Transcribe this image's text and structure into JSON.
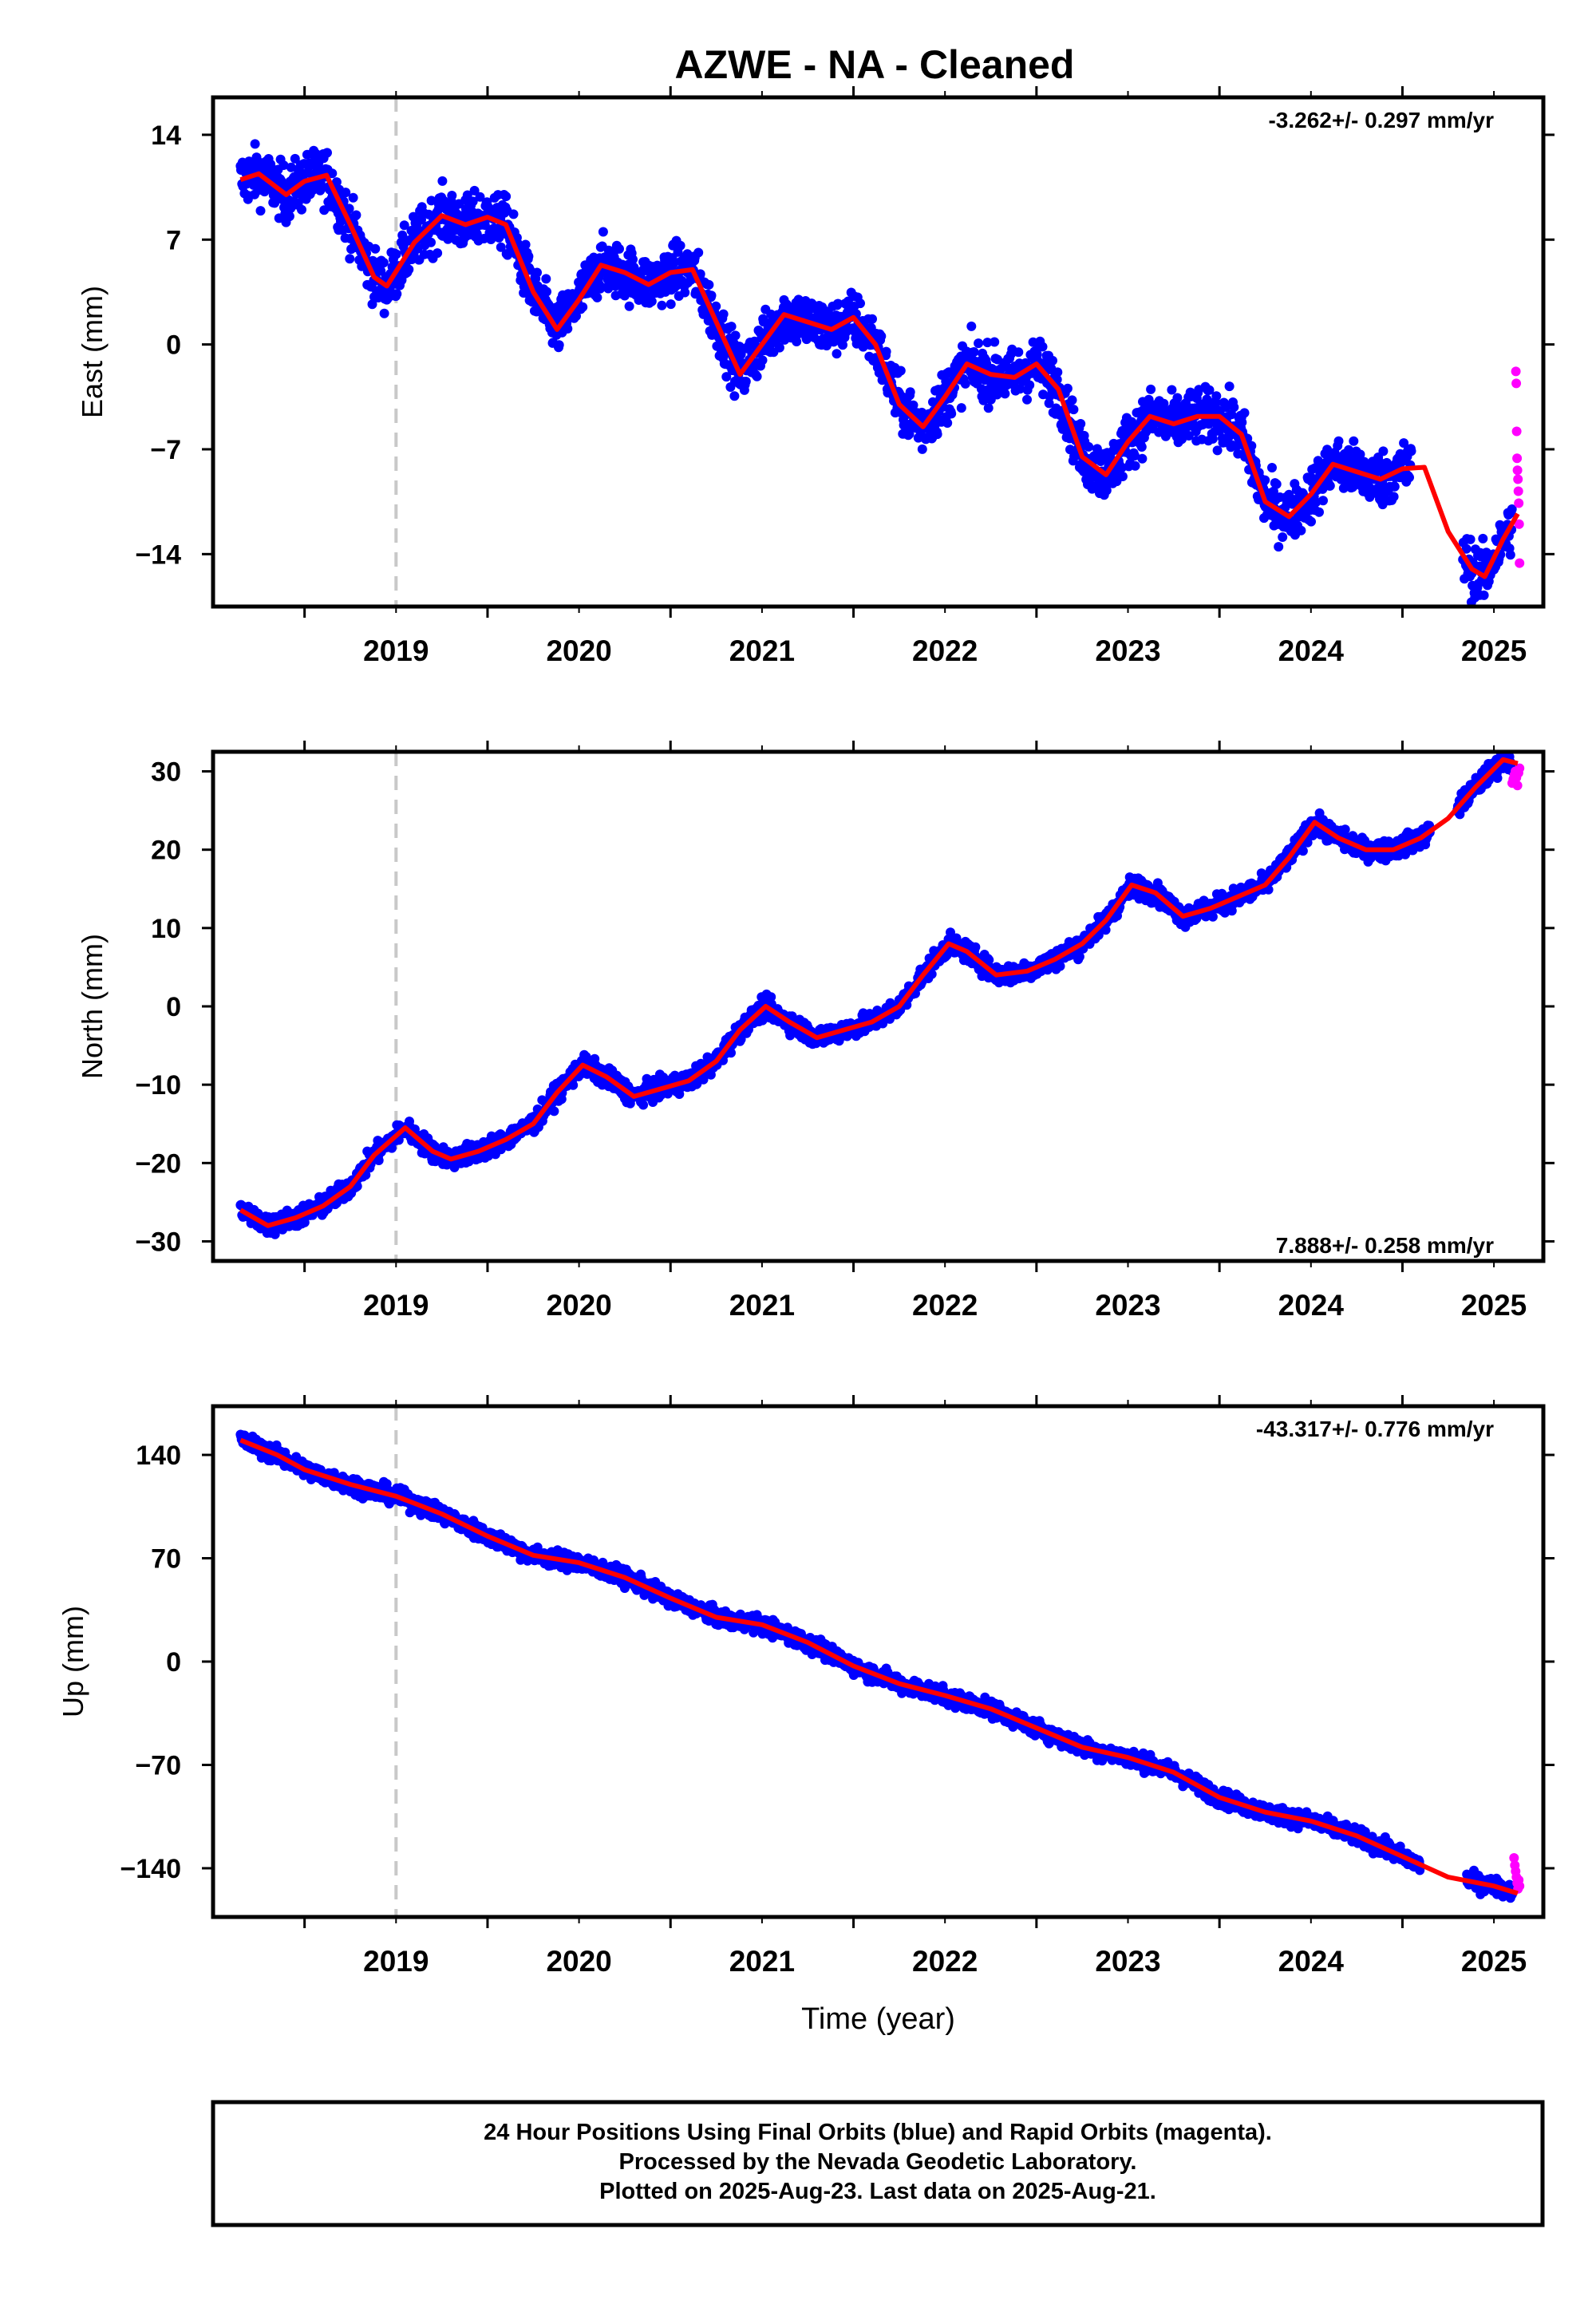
{
  "title": "AZWE  - NA - Cleaned",
  "footer": {
    "line1": "24 Hour Positions Using Final Orbits (blue) and Rapid Orbits (magenta).",
    "line2": "Processed by the Nevada Geodetic Laboratory.",
    "line3": "Plotted on 2025-Aug-23. Last data on 2025-Aug-21."
  },
  "colors": {
    "final": "#0000ff",
    "rapid": "#ff00ff",
    "fit": "#ff0000",
    "marker_line": "#c8c8c8"
  },
  "chart_data": [
    {
      "type": "scatter",
      "ylabel": "East (mm)",
      "xlabel": "",
      "xlim": [
        2018.5,
        2025.77
      ],
      "ylim": [
        -17.5,
        16.5
      ],
      "yticks": [
        14,
        7,
        0,
        -7,
        -14
      ],
      "ytick_labels": [
        "14",
        "7",
        "0",
        "−7",
        "−14"
      ],
      "xticks": [
        2019,
        2020,
        2021,
        2022,
        2023,
        2024,
        2025
      ],
      "xtick_labels": [
        "2019",
        "2020",
        "2021",
        "2022",
        "2023",
        "2024",
        "2025"
      ],
      "rate": "-3.262+/- 0.297 mm/yr",
      "rate_position": "top-right",
      "equipment_change_year": 2019.5,
      "final_orbits": {
        "start": 2018.65,
        "end": 2025.6,
        "gaps": [
          [
            2025.05,
            2025.33
          ]
        ],
        "noise": 1.3
      },
      "rapid_orbits": {
        "start": 2025.62,
        "end": 2025.64,
        "values": [
          -1.8,
          -2.6,
          -5.8,
          -7.6,
          -8.4,
          -9.0,
          -9.8,
          -10.6,
          -12.0,
          -14.6
        ]
      },
      "fit_curve": {
        "x": [
          2018.65,
          2018.75,
          2018.9,
          2019.0,
          2019.12,
          2019.25,
          2019.38,
          2019.45,
          2019.6,
          2019.75,
          2019.88,
          2020.0,
          2020.1,
          2020.25,
          2020.38,
          2020.5,
          2020.62,
          2020.75,
          2020.88,
          2021.0,
          2021.12,
          2021.25,
          2021.38,
          2021.5,
          2021.62,
          2021.75,
          2021.88,
          2022.0,
          2022.12,
          2022.25,
          2022.38,
          2022.5,
          2022.62,
          2022.75,
          2022.88,
          2023.0,
          2023.12,
          2023.25,
          2023.38,
          2023.5,
          2023.62,
          2023.75,
          2023.88,
          2024.0,
          2024.12,
          2024.25,
          2024.38,
          2024.5,
          2024.62,
          2024.75,
          2024.88,
          2025.0,
          2025.12,
          2025.25,
          2025.38,
          2025.45,
          2025.55,
          2025.63
        ],
        "y": [
          11.0,
          11.4,
          10.0,
          10.9,
          11.3,
          8.0,
          4.5,
          3.9,
          6.8,
          8.6,
          8.0,
          8.5,
          8.0,
          3.5,
          1.0,
          3.0,
          5.3,
          4.8,
          4.0,
          4.8,
          5.0,
          1.5,
          -2.0,
          0.0,
          2.0,
          1.5,
          1.0,
          1.8,
          0.0,
          -4.0,
          -5.5,
          -3.5,
          -1.3,
          -2.0,
          -2.2,
          -1.3,
          -3.0,
          -7.5,
          -8.7,
          -6.5,
          -4.8,
          -5.3,
          -4.8,
          -4.8,
          -6.0,
          -10.5,
          -11.5,
          -10.0,
          -8.0,
          -8.5,
          -9.0,
          -8.3,
          -8.2,
          -12.5,
          -15.0,
          -15.5,
          -13.0,
          -11.3
        ]
      }
    },
    {
      "type": "scatter",
      "ylabel": "North (mm)",
      "xlabel": "",
      "xlim": [
        2018.5,
        2025.77
      ],
      "ylim": [
        -32.5,
        32.5
      ],
      "yticks": [
        30,
        20,
        10,
        0,
        -10,
        -20,
        -30
      ],
      "ytick_labels": [
        "30",
        "20",
        "10",
        "0",
        "−10",
        "−20",
        "−30"
      ],
      "xticks": [
        2019,
        2020,
        2021,
        2022,
        2023,
        2024,
        2025
      ],
      "xtick_labels": [
        "2019",
        "2020",
        "2021",
        "2022",
        "2023",
        "2024",
        "2025"
      ],
      "rate": "7.888+/- 0.258 mm/yr",
      "rate_position": "bottom-right",
      "equipment_change_year": 2019.5,
      "final_orbits": {
        "start": 2018.65,
        "end": 2025.6,
        "gaps": [
          [
            2025.15,
            2025.3
          ]
        ],
        "noise": 0.9
      },
      "rapid_orbits": {
        "start": 2025.6,
        "end": 2025.64,
        "values": [
          28.5,
          29.0,
          29.5,
          30.0,
          29.2,
          28.2,
          29.8,
          30.4
        ]
      },
      "fit_curve": {
        "x": [
          2018.65,
          2018.8,
          2018.95,
          2019.1,
          2019.25,
          2019.38,
          2019.55,
          2019.7,
          2019.8,
          2019.95,
          2020.1,
          2020.25,
          2020.38,
          2020.52,
          2020.65,
          2020.8,
          2020.95,
          2021.1,
          2021.25,
          2021.38,
          2021.52,
          2021.65,
          2021.8,
          2021.95,
          2022.1,
          2022.25,
          2022.38,
          2022.52,
          2022.62,
          2022.78,
          2022.95,
          2023.1,
          2023.25,
          2023.38,
          2023.52,
          2023.65,
          2023.8,
          2023.95,
          2024.1,
          2024.25,
          2024.38,
          2024.52,
          2024.65,
          2024.8,
          2024.95,
          2025.1,
          2025.25,
          2025.4,
          2025.55,
          2025.63
        ],
        "y": [
          -26.0,
          -28.0,
          -27.0,
          -25.5,
          -23.0,
          -19.0,
          -15.5,
          -18.5,
          -19.5,
          -18.5,
          -17.0,
          -15.0,
          -11.0,
          -7.5,
          -9.0,
          -11.5,
          -10.5,
          -9.5,
          -7.0,
          -3.0,
          0.0,
          -2.0,
          -4.0,
          -3.0,
          -2.0,
          0.0,
          4.0,
          8.0,
          7.0,
          4.0,
          4.5,
          6.0,
          8.0,
          11.0,
          15.5,
          14.5,
          11.5,
          12.5,
          14.0,
          15.5,
          19.0,
          23.5,
          21.5,
          20.0,
          20.0,
          21.5,
          24.0,
          28.0,
          31.5,
          31.0
        ]
      }
    },
    {
      "type": "scatter",
      "ylabel": "Up (mm)",
      "xlabel": "Time (year)",
      "xlim": [
        2018.5,
        2025.77
      ],
      "ylim": [
        -173,
        173
      ],
      "yticks": [
        140,
        70,
        0,
        -70,
        -140
      ],
      "ytick_labels": [
        "140",
        "70",
        "0",
        "−70",
        "−140"
      ],
      "xticks": [
        2019,
        2020,
        2021,
        2022,
        2023,
        2024,
        2025
      ],
      "xtick_labels": [
        "2019",
        "2020",
        "2021",
        "2022",
        "2023",
        "2024",
        "2025"
      ],
      "rate": "-43.317+/- 0.776 mm/yr",
      "rate_position": "top-right",
      "equipment_change_year": 2019.5,
      "final_orbits": {
        "start": 2018.65,
        "end": 2025.6,
        "gaps": [
          [
            2025.1,
            2025.35
          ]
        ],
        "noise": 4.0
      },
      "rapid_orbits": {
        "start": 2025.61,
        "end": 2025.64,
        "values": [
          -133,
          -138,
          -142,
          -146,
          -150,
          -154,
          -148,
          -152
        ]
      },
      "fit_curve": {
        "x": [
          2018.65,
          2018.85,
          2019.0,
          2019.25,
          2019.5,
          2019.75,
          2020.0,
          2020.25,
          2020.5,
          2020.75,
          2021.0,
          2021.25,
          2021.5,
          2021.75,
          2022.0,
          2022.25,
          2022.5,
          2022.75,
          2023.0,
          2023.25,
          2023.5,
          2023.75,
          2024.0,
          2024.25,
          2024.5,
          2024.75,
          2025.0,
          2025.25,
          2025.5,
          2025.63
        ],
        "y": [
          150,
          140,
          130,
          120,
          112,
          100,
          85,
          72,
          67,
          57,
          43,
          30,
          25,
          13,
          -3,
          -15,
          -23,
          -32,
          -45,
          -58,
          -65,
          -75,
          -92,
          -102,
          -108,
          -118,
          -132,
          -146,
          -152,
          -157
        ]
      }
    }
  ]
}
